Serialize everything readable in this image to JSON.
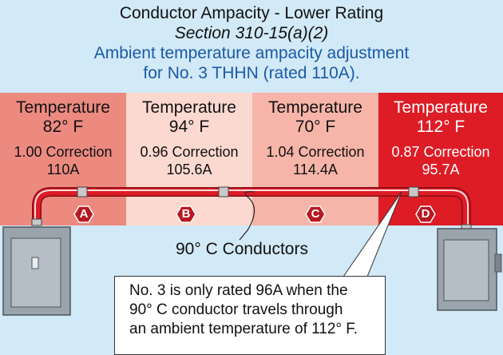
{
  "title": {
    "line1": "Conductor Ampacity - Lower Rating",
    "line2": "Section 310-15(a)(2)",
    "line3": "Ambient temperature ampacity adjustment",
    "line4": "for No. 3 THHN (rated 110A)."
  },
  "zones": [
    {
      "label": "Temperature",
      "temp": "82° F",
      "correction": "1.00 Correction",
      "amps": "110A",
      "letter": "A",
      "color": "#ec8a80"
    },
    {
      "label": "Temperature",
      "temp": "94° F",
      "correction": "0.96 Correction",
      "amps": "105.6A",
      "letter": "B",
      "color": "#fbd9d0"
    },
    {
      "label": "Temperature",
      "temp": "70° F",
      "correction": "1.04 Correction",
      "amps": "114.4A",
      "letter": "C",
      "color": "#f6b5a8"
    },
    {
      "label": "Temperature",
      "temp": "112° F",
      "correction": "0.87 Correction",
      "amps": "95.7A",
      "letter": "D",
      "color": "#dd1c26"
    }
  ],
  "conductors_label": "90° C Conductors",
  "callout": {
    "line1": "No. 3 is only rated 96A when the",
    "line2": "90° C conductor travels through",
    "line3": "an ambient temperature of 112° F."
  },
  "colors": {
    "background": "#d2e9f7",
    "conduit": "#dd1c26",
    "enclosure": "#9aa4ad"
  }
}
